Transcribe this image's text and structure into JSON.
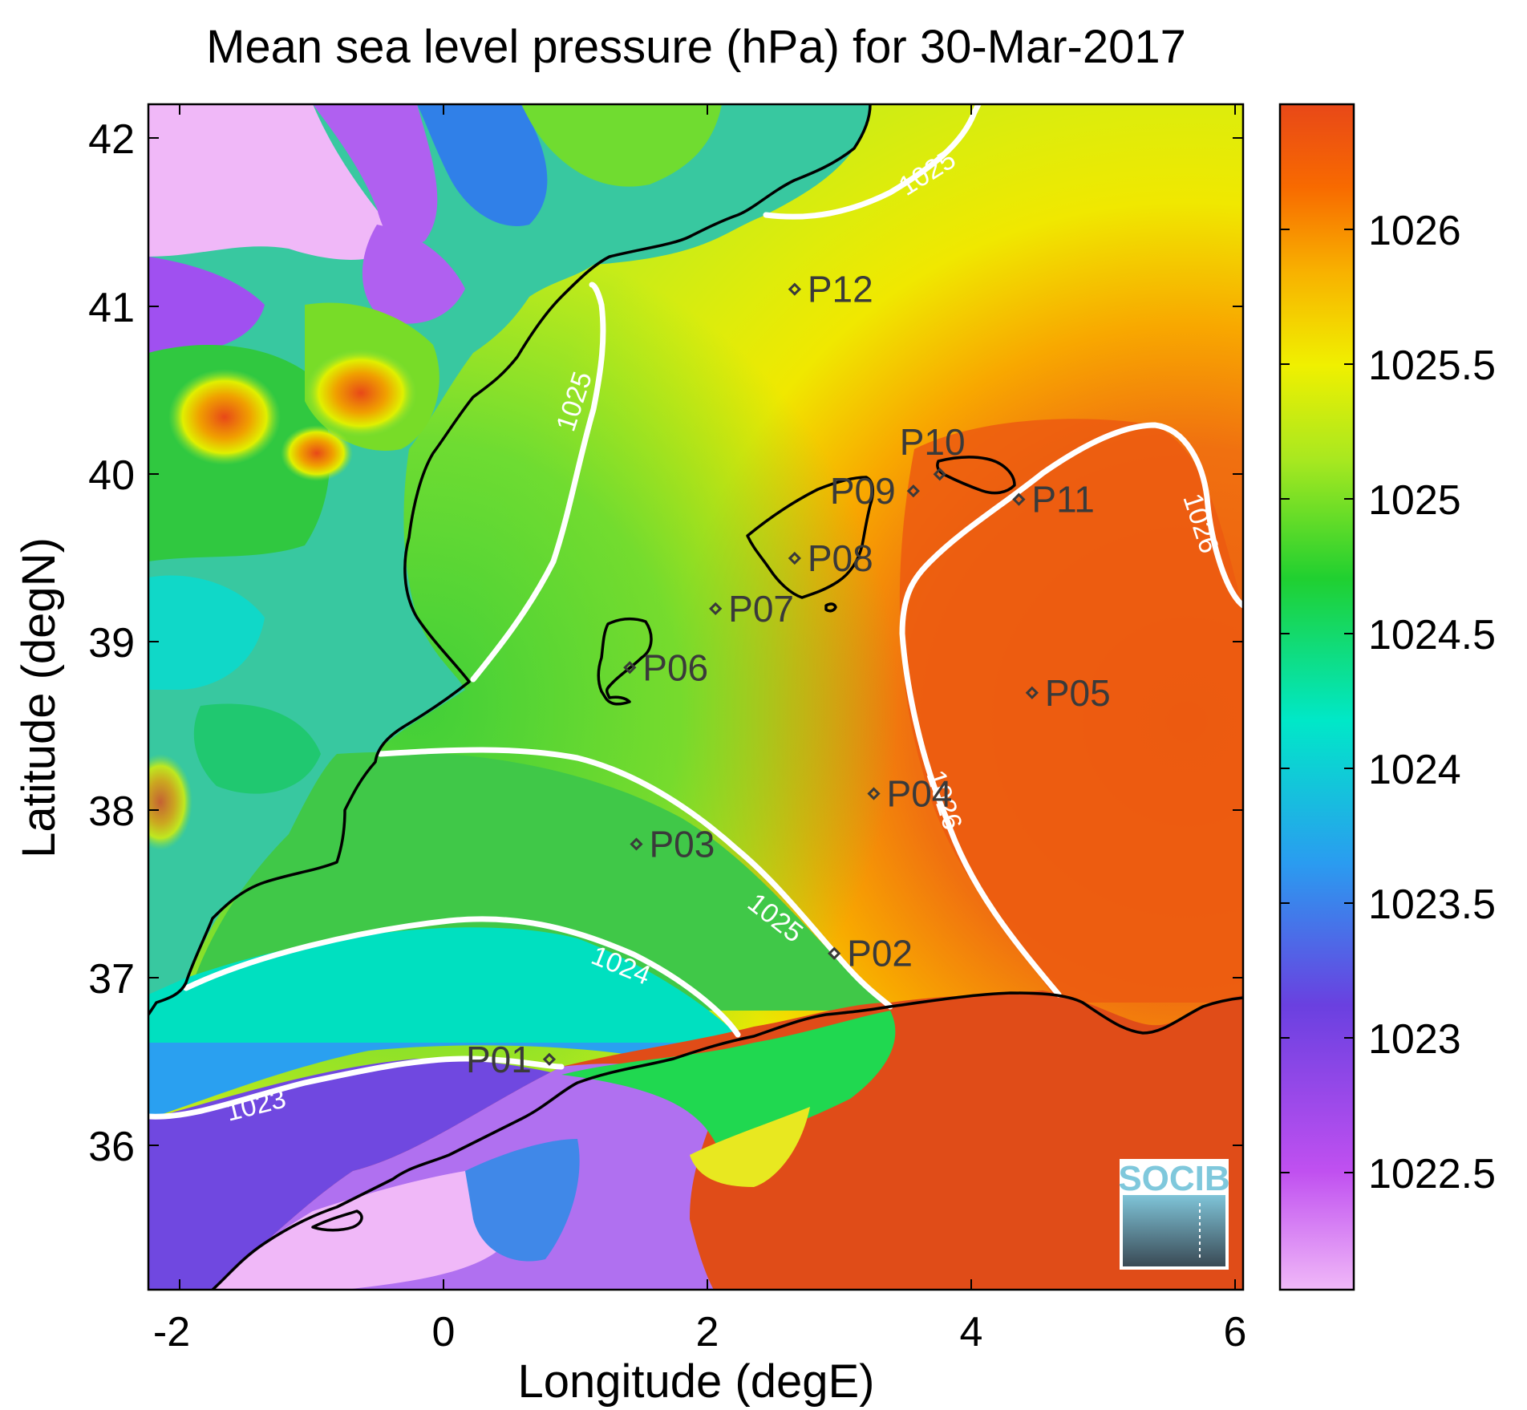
{
  "title": "Mean sea level pressure (hPa) for 30-Mar-2017",
  "xlabel": "Longitude (degE)",
  "ylabel": "Latitude (degN)",
  "x_ticks": [
    "-2",
    "0",
    "2",
    "4",
    "6"
  ],
  "y_ticks": [
    "36",
    "37",
    "38",
    "39",
    "40",
    "41",
    "42"
  ],
  "colorbar_ticks": [
    "1022.5",
    "1023",
    "1023.5",
    "1024",
    "1024.5",
    "1025",
    "1025.5",
    "1026"
  ],
  "colors": {
    "low": "#f0b8f8",
    "mid_low": "#00e8c8",
    "mid": "#20d030",
    "mid_high": "#f0f000",
    "high": "#e84818",
    "contour": "#ffffff",
    "coast": "#000000"
  },
  "logo": {
    "text": "SOCIB"
  },
  "chart_data": {
    "type": "heatmap",
    "title": "Mean sea level pressure (hPa) for 30-Mar-2017",
    "xlabel": "Longitude (degE)",
    "ylabel": "Latitude (degN)",
    "xlim": [
      -2.2,
      6.1
    ],
    "ylim": [
      35.15,
      42.2
    ],
    "colorbar_range": [
      1022.1,
      1026.5
    ],
    "stations": [
      {
        "name": "P01",
        "lon": 0.84,
        "lat": 36.52
      },
      {
        "name": "P02",
        "lon": 3.0,
        "lat": 37.15
      },
      {
        "name": "P03",
        "lon": 1.5,
        "lat": 37.8
      },
      {
        "name": "P04",
        "lon": 3.3,
        "lat": 38.1
      },
      {
        "name": "P05",
        "lon": 4.5,
        "lat": 38.7
      },
      {
        "name": "P06",
        "lon": 1.45,
        "lat": 38.85
      },
      {
        "name": "P07",
        "lon": 2.1,
        "lat": 39.2
      },
      {
        "name": "P08",
        "lon": 2.7,
        "lat": 39.5
      },
      {
        "name": "P09",
        "lon": 3.6,
        "lat": 39.9
      },
      {
        "name": "P10",
        "lon": 3.8,
        "lat": 40.0
      },
      {
        "name": "P11",
        "lon": 4.4,
        "lat": 39.85
      },
      {
        "name": "P12",
        "lon": 2.7,
        "lat": 41.1
      }
    ],
    "contours": [
      {
        "level": "1023"
      },
      {
        "level": "1024"
      },
      {
        "level": "1025"
      },
      {
        "level": "1025"
      },
      {
        "level": "1025"
      },
      {
        "level": "1026"
      },
      {
        "level": "1026"
      }
    ]
  }
}
